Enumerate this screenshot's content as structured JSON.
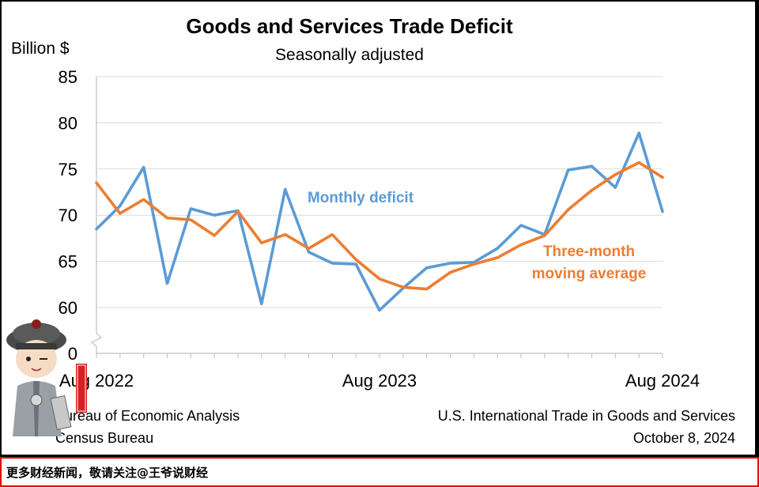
{
  "chart_data": {
    "type": "line",
    "title": "Goods and Services Trade Deficit",
    "subtitle": "Seasonally adjusted",
    "ylabel": "Billion $",
    "ylim": [
      0,
      85
    ],
    "axis_break": true,
    "y_ticks": [
      "85",
      "80",
      "75",
      "70",
      "65",
      "60",
      "0"
    ],
    "x_tick_labels": [
      {
        "index": 0,
        "label": "Aug 2022"
      },
      {
        "index": 12,
        "label": "Aug 2023"
      },
      {
        "index": 24,
        "label": "Aug 2024"
      }
    ],
    "x": [
      "Aug 2022",
      "Sep 2022",
      "Oct 2022",
      "Nov 2022",
      "Dec 2022",
      "Jan 2023",
      "Feb 2023",
      "Mar 2023",
      "Apr 2023",
      "May 2023",
      "Jun 2023",
      "Jul 2023",
      "Aug 2023",
      "Sep 2023",
      "Oct 2023",
      "Nov 2023",
      "Dec 2023",
      "Jan 2024",
      "Feb 2024",
      "Mar 2024",
      "Apr 2024",
      "May 2024",
      "Jun 2024",
      "Jul 2024",
      "Aug 2024"
    ],
    "series": [
      {
        "name": "Monthly deficit",
        "color": "#5b9bd5",
        "values": [
          68.5,
          71.0,
          75.2,
          62.6,
          70.7,
          70.0,
          70.5,
          60.4,
          72.8,
          66.0,
          64.8,
          64.7,
          59.7,
          62.1,
          64.3,
          64.8,
          64.9,
          66.4,
          68.9,
          67.9,
          74.9,
          75.3,
          73.0,
          78.9,
          70.4
        ]
      },
      {
        "name": "Three-month\nmoving average",
        "color": "#ed7d31",
        "values": [
          73.5,
          70.2,
          71.7,
          69.7,
          69.5,
          67.8,
          70.4,
          67.0,
          67.9,
          66.4,
          67.9,
          65.2,
          63.1,
          62.2,
          62.0,
          63.8,
          64.7,
          65.4,
          66.8,
          67.8,
          70.6,
          72.7,
          74.4,
          75.7,
          74.1
        ]
      }
    ]
  },
  "source": {
    "line1": "Bureau of Economic Analysis",
    "line2": "Census Bureau"
  },
  "release": {
    "line1": "U.S. International Trade in Goods and Services",
    "line2": "October 8, 2024"
  },
  "footer": {
    "text": "更多财经新闻，敬请关注@王爷说财经"
  },
  "watermark": {
    "stamp_text": "王爷说财经"
  }
}
